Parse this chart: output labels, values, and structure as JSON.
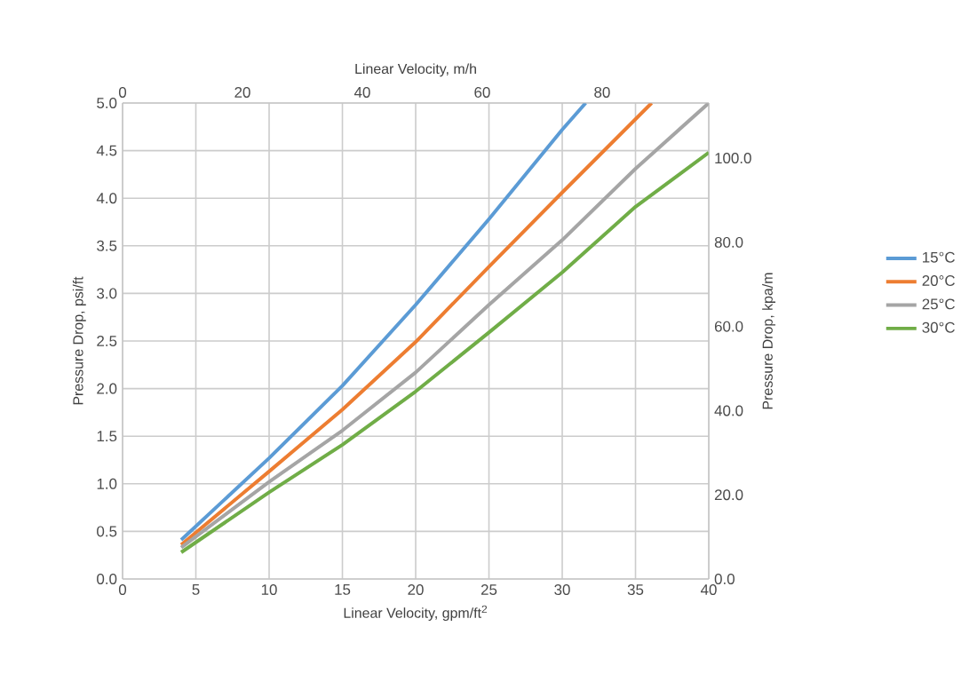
{
  "chart_data": {
    "type": "line",
    "xlabel": "Linear Velocity, gpm/ft$^{2}$",
    "ylabel": "Pressure Drop, psi/ft",
    "x2label": "Linear Velocity, m/h",
    "y2label": "Pressure Drop, kpa/m",
    "x": [
      4,
      10,
      15,
      20,
      25,
      30,
      35,
      40
    ],
    "series": [
      {
        "name": "15°C",
        "color": "#5b9bd5",
        "x": [
          4,
          10,
          15,
          20,
          25,
          30,
          31.6
        ],
        "values": [
          0.41,
          1.27,
          2.03,
          2.88,
          3.78,
          4.72,
          5.0
        ]
      },
      {
        "name": "20°C",
        "color": "#ed7d31",
        "x": [
          4,
          10,
          15,
          20,
          25,
          30,
          36.1
        ],
        "values": [
          0.36,
          1.13,
          1.78,
          2.49,
          3.28,
          4.06,
          5.0
        ]
      },
      {
        "name": "25°C",
        "color": "#a5a5a5",
        "values": [
          0.33,
          1.02,
          1.56,
          2.17,
          2.88,
          3.56,
          4.31,
          5.0
        ]
      },
      {
        "name": "30°C",
        "color": "#70ad47",
        "values": [
          0.28,
          0.91,
          1.41,
          1.97,
          2.59,
          3.22,
          3.91,
          4.48
        ]
      }
    ],
    "xlim": [
      0,
      40
    ],
    "xticks": [
      0,
      5,
      10,
      15,
      20,
      25,
      30,
      35,
      40
    ],
    "ylim": [
      0,
      5
    ],
    "yticks": [
      {
        "value": 0,
        "label": "0.0"
      },
      {
        "value": 0.5,
        "label": "0.5"
      },
      {
        "value": 1,
        "label": "1.0"
      },
      {
        "value": 1.5,
        "label": "1.5"
      },
      {
        "value": 2,
        "label": "2.0"
      },
      {
        "value": 2.5,
        "label": "2.5"
      },
      {
        "value": 3,
        "label": "3.0"
      },
      {
        "value": 3.5,
        "label": "3.5"
      },
      {
        "value": 4,
        "label": "4.0"
      },
      {
        "value": 4.5,
        "label": "4.5"
      },
      {
        "value": 5,
        "label": "5.0"
      }
    ],
    "x2lim": [
      0,
      97.8
    ],
    "x2ticks": [
      0,
      20,
      40,
      60,
      80
    ],
    "y2lim": [
      0,
      113.1
    ],
    "y2ticks": [
      {
        "value": 0,
        "label": "0.0"
      },
      {
        "value": 20,
        "label": "20.0"
      },
      {
        "value": 40,
        "label": "40.0"
      },
      {
        "value": 60,
        "label": "60.0"
      },
      {
        "value": 80,
        "label": "80.0"
      },
      {
        "value": 100,
        "label": "100.0"
      }
    ],
    "grid": true,
    "legend": "right",
    "marker": "none",
    "line_style": "solid"
  }
}
